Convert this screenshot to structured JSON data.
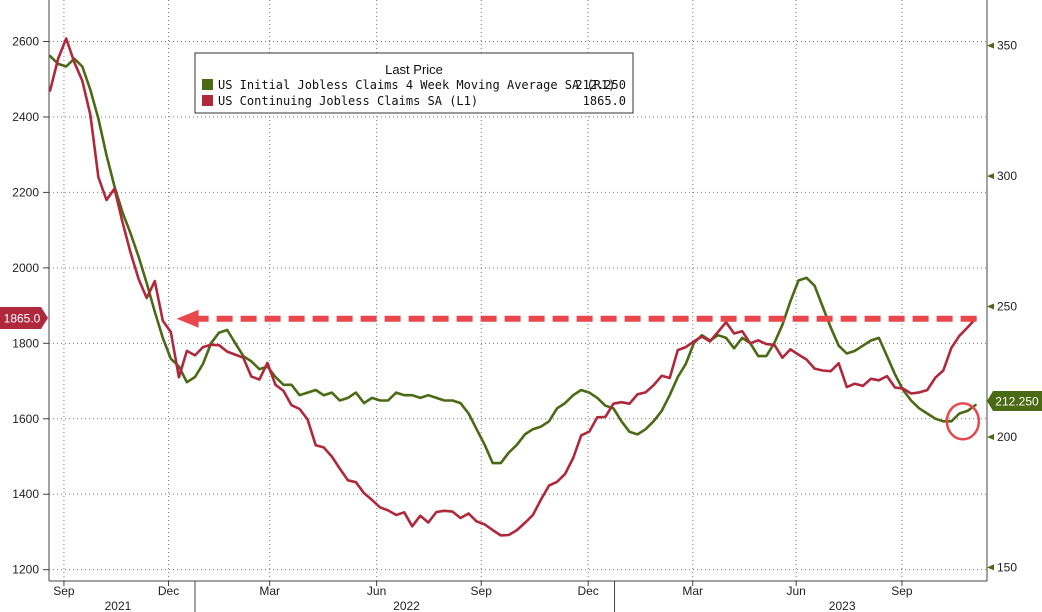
{
  "chart_data": {
    "type": "line",
    "title": "",
    "legend": {
      "title": "Last Price",
      "placement": "top-left",
      "entries": [
        {
          "series_index": 0,
          "label": "US Initial Jobless Claims 4 Week Moving Average SA  (R1)",
          "last_value": "212.250"
        },
        {
          "series_index": 1,
          "label": "US Continuing Jobless Claims SA  (L1)",
          "last_value": "1865.0"
        }
      ]
    },
    "left_axis": {
      "min": 1170,
      "max": 2710,
      "ticks": [
        1200,
        1400,
        1600,
        1800,
        2000,
        2200,
        2400,
        2600
      ]
    },
    "right_axis": {
      "min": 144.8,
      "max": 367.5,
      "ticks": [
        150,
        200,
        250,
        300,
        350
      ]
    },
    "x_axis": {
      "min": "2021-08-26",
      "max": "2023-11-20",
      "month_ticks": [
        {
          "label": "Sep",
          "date": "2021-09-08"
        },
        {
          "label": "Dec",
          "date": "2021-12-08"
        },
        {
          "label": "Mar",
          "date": "2022-03-06"
        },
        {
          "label": "Jun",
          "date": "2022-06-07"
        },
        {
          "label": "Sep",
          "date": "2022-09-06"
        },
        {
          "label": "Dec",
          "date": "2022-12-08"
        },
        {
          "label": "Mar",
          "date": "2023-03-09"
        },
        {
          "label": "Jun",
          "date": "2023-06-07"
        },
        {
          "label": "Sep",
          "date": "2023-09-07"
        }
      ],
      "year_labels": [
        {
          "label": "2021",
          "date": "2021-10-25"
        },
        {
          "label": "2022",
          "date": "2022-07-03"
        },
        {
          "label": "2023",
          "date": "2023-07-17"
        }
      ],
      "year_dividers": [
        "2021-12-31",
        "2022-12-31"
      ]
    },
    "grid": true,
    "reference_line": {
      "value": 1865,
      "axis": "left",
      "style": "dashed-arrow",
      "color": "#e8474c",
      "from": "2021-12-15",
      "to": "2023-11-15"
    },
    "highlight_circle": {
      "date": "2023-10-30",
      "value": 206,
      "axis": "right",
      "color": "#e8474c"
    },
    "series": [
      {
        "name": "US Initial Jobless Claims 4 Week Moving Average SA",
        "axis": "right",
        "color": "#4b6a14",
        "points": [
          [
            "2021-08-27",
            346
          ],
          [
            "2021-09-03",
            343
          ],
          [
            "2021-09-10",
            342
          ],
          [
            "2021-09-17",
            345
          ],
          [
            "2021-09-24",
            342
          ],
          [
            "2021-10-01",
            333
          ],
          [
            "2021-10-08",
            322
          ],
          [
            "2021-10-15",
            308
          ],
          [
            "2021-10-22",
            296
          ],
          [
            "2021-10-29",
            286
          ],
          [
            "2021-11-05",
            278
          ],
          [
            "2021-11-12",
            269
          ],
          [
            "2021-11-19",
            259
          ],
          [
            "2021-11-26",
            248
          ],
          [
            "2021-12-03",
            238
          ],
          [
            "2021-12-10",
            230
          ],
          [
            "2021-12-17",
            227
          ],
          [
            "2021-12-24",
            221
          ],
          [
            "2021-12-31",
            223
          ],
          [
            "2022-01-07",
            228
          ],
          [
            "2022-01-14",
            236
          ],
          [
            "2022-01-21",
            240
          ],
          [
            "2022-01-28",
            241
          ],
          [
            "2022-02-04",
            236
          ],
          [
            "2022-02-11",
            231
          ],
          [
            "2022-02-18",
            229
          ],
          [
            "2022-02-25",
            226
          ],
          [
            "2022-03-04",
            227
          ],
          [
            "2022-03-11",
            223
          ],
          [
            "2022-03-18",
            220
          ],
          [
            "2022-03-25",
            220
          ],
          [
            "2022-04-01",
            216
          ],
          [
            "2022-04-08",
            217
          ],
          [
            "2022-04-15",
            218
          ],
          [
            "2022-04-22",
            216
          ],
          [
            "2022-04-29",
            217
          ],
          [
            "2022-05-06",
            214
          ],
          [
            "2022-05-13",
            215
          ],
          [
            "2022-05-20",
            217
          ],
          [
            "2022-05-27",
            213
          ],
          [
            "2022-06-03",
            215
          ],
          [
            "2022-06-10",
            214
          ],
          [
            "2022-06-17",
            214
          ],
          [
            "2022-06-24",
            217
          ],
          [
            "2022-07-01",
            216
          ],
          [
            "2022-07-08",
            216
          ],
          [
            "2022-07-15",
            215
          ],
          [
            "2022-07-22",
            216
          ],
          [
            "2022-07-29",
            215
          ],
          [
            "2022-08-05",
            214
          ],
          [
            "2022-08-12",
            214
          ],
          [
            "2022-08-19",
            213
          ],
          [
            "2022-08-26",
            209
          ],
          [
            "2022-09-02",
            203
          ],
          [
            "2022-09-09",
            197
          ],
          [
            "2022-09-16",
            190
          ],
          [
            "2022-09-23",
            190
          ],
          [
            "2022-09-30",
            194
          ],
          [
            "2022-10-07",
            197
          ],
          [
            "2022-10-14",
            201
          ],
          [
            "2022-10-21",
            203
          ],
          [
            "2022-10-28",
            204
          ],
          [
            "2022-11-04",
            206
          ],
          [
            "2022-11-11",
            211
          ],
          [
            "2022-11-18",
            213
          ],
          [
            "2022-11-25",
            216
          ],
          [
            "2022-12-02",
            218
          ],
          [
            "2022-12-09",
            217
          ],
          [
            "2022-12-16",
            215
          ],
          [
            "2022-12-23",
            212
          ],
          [
            "2022-12-30",
            211
          ],
          [
            "2023-01-06",
            206
          ],
          [
            "2023-01-13",
            202
          ],
          [
            "2023-01-20",
            201
          ],
          [
            "2023-01-27",
            203
          ],
          [
            "2023-02-03",
            206
          ],
          [
            "2023-02-10",
            210
          ],
          [
            "2023-02-17",
            216
          ],
          [
            "2023-02-24",
            223
          ],
          [
            "2023-03-03",
            228
          ],
          [
            "2023-03-10",
            236
          ],
          [
            "2023-03-17",
            239
          ],
          [
            "2023-03-24",
            237
          ],
          [
            "2023-03-31",
            239
          ],
          [
            "2023-04-07",
            238
          ],
          [
            "2023-04-14",
            234
          ],
          [
            "2023-04-21",
            238
          ],
          [
            "2023-04-28",
            236
          ],
          [
            "2023-05-05",
            231
          ],
          [
            "2023-05-12",
            231
          ],
          [
            "2023-05-19",
            236
          ],
          [
            "2023-05-26",
            243
          ],
          [
            "2023-06-02",
            252
          ],
          [
            "2023-06-09",
            260
          ],
          [
            "2023-06-16",
            261
          ],
          [
            "2023-06-23",
            258
          ],
          [
            "2023-06-30",
            250
          ],
          [
            "2023-07-07",
            242
          ],
          [
            "2023-07-14",
            235
          ],
          [
            "2023-07-21",
            232
          ],
          [
            "2023-07-28",
            233
          ],
          [
            "2023-08-04",
            235
          ],
          [
            "2023-08-11",
            237
          ],
          [
            "2023-08-18",
            238
          ],
          [
            "2023-08-25",
            231
          ],
          [
            "2023-09-01",
            224
          ],
          [
            "2023-09-08",
            218
          ],
          [
            "2023-09-15",
            214
          ],
          [
            "2023-09-22",
            211
          ],
          [
            "2023-09-29",
            209
          ],
          [
            "2023-10-06",
            207
          ],
          [
            "2023-10-13",
            206
          ],
          [
            "2023-10-20",
            206
          ],
          [
            "2023-10-27",
            209
          ],
          [
            "2023-11-03",
            210
          ],
          [
            "2023-11-10",
            212.25
          ]
        ]
      },
      {
        "name": "US Continuing Jobless Claims SA",
        "axis": "left",
        "color": "#b0283c",
        "points": [
          [
            "2021-08-27",
            2470
          ],
          [
            "2021-09-03",
            2555
          ],
          [
            "2021-09-10",
            2608
          ],
          [
            "2021-09-17",
            2545
          ],
          [
            "2021-09-24",
            2496
          ],
          [
            "2021-10-01",
            2405
          ],
          [
            "2021-10-08",
            2240
          ],
          [
            "2021-10-15",
            2180
          ],
          [
            "2021-10-22",
            2210
          ],
          [
            "2021-10-29",
            2120
          ],
          [
            "2021-11-05",
            2040
          ],
          [
            "2021-11-12",
            1970
          ],
          [
            "2021-11-19",
            1920
          ],
          [
            "2021-11-26",
            1965
          ],
          [
            "2021-12-03",
            1860
          ],
          [
            "2021-12-10",
            1830
          ],
          [
            "2021-12-17",
            1710
          ],
          [
            "2021-12-24",
            1780
          ],
          [
            "2021-12-31",
            1768
          ],
          [
            "2022-01-07",
            1790
          ],
          [
            "2022-01-14",
            1796
          ],
          [
            "2022-01-21",
            1795
          ],
          [
            "2022-01-28",
            1778
          ],
          [
            "2022-02-04",
            1770
          ],
          [
            "2022-02-11",
            1762
          ],
          [
            "2022-02-18",
            1712
          ],
          [
            "2022-02-25",
            1704
          ],
          [
            "2022-03-04",
            1748
          ],
          [
            "2022-03-11",
            1690
          ],
          [
            "2022-03-18",
            1674
          ],
          [
            "2022-03-25",
            1636
          ],
          [
            "2022-04-01",
            1626
          ],
          [
            "2022-04-08",
            1598
          ],
          [
            "2022-04-15",
            1530
          ],
          [
            "2022-04-22",
            1524
          ],
          [
            "2022-04-29",
            1500
          ],
          [
            "2022-05-06",
            1468
          ],
          [
            "2022-05-13",
            1437
          ],
          [
            "2022-05-20",
            1432
          ],
          [
            "2022-05-27",
            1403
          ],
          [
            "2022-06-03",
            1385
          ],
          [
            "2022-06-10",
            1365
          ],
          [
            "2022-06-17",
            1357
          ],
          [
            "2022-06-24",
            1345
          ],
          [
            "2022-07-01",
            1352
          ],
          [
            "2022-07-08",
            1315
          ],
          [
            "2022-07-15",
            1343
          ],
          [
            "2022-07-22",
            1325
          ],
          [
            "2022-07-29",
            1353
          ],
          [
            "2022-08-05",
            1356
          ],
          [
            "2022-08-12",
            1354
          ],
          [
            "2022-08-19",
            1337
          ],
          [
            "2022-08-26",
            1349
          ],
          [
            "2022-09-02",
            1328
          ],
          [
            "2022-09-09",
            1320
          ],
          [
            "2022-09-16",
            1305
          ],
          [
            "2022-09-23",
            1291
          ],
          [
            "2022-09-30",
            1292
          ],
          [
            "2022-10-07",
            1305
          ],
          [
            "2022-10-14",
            1324
          ],
          [
            "2022-10-21",
            1345
          ],
          [
            "2022-10-28",
            1386
          ],
          [
            "2022-11-04",
            1423
          ],
          [
            "2022-11-11",
            1433
          ],
          [
            "2022-11-18",
            1454
          ],
          [
            "2022-11-25",
            1496
          ],
          [
            "2022-12-02",
            1556
          ],
          [
            "2022-12-09",
            1566
          ],
          [
            "2022-12-16",
            1604
          ],
          [
            "2022-12-23",
            1605
          ],
          [
            "2022-12-30",
            1640
          ],
          [
            "2023-01-06",
            1644
          ],
          [
            "2023-01-13",
            1640
          ],
          [
            "2023-01-20",
            1665
          ],
          [
            "2023-01-27",
            1670
          ],
          [
            "2023-02-03",
            1689
          ],
          [
            "2023-02-10",
            1714
          ],
          [
            "2023-02-17",
            1708
          ],
          [
            "2023-02-24",
            1782
          ],
          [
            "2023-03-03",
            1790
          ],
          [
            "2023-03-10",
            1805
          ],
          [
            "2023-03-17",
            1818
          ],
          [
            "2023-03-24",
            1805
          ],
          [
            "2023-03-31",
            1830
          ],
          [
            "2023-04-07",
            1856
          ],
          [
            "2023-04-14",
            1826
          ],
          [
            "2023-04-21",
            1832
          ],
          [
            "2023-04-28",
            1800
          ],
          [
            "2023-05-05",
            1808
          ],
          [
            "2023-05-12",
            1798
          ],
          [
            "2023-05-19",
            1796
          ],
          [
            "2023-05-26",
            1762
          ],
          [
            "2023-06-02",
            1784
          ],
          [
            "2023-06-09",
            1770
          ],
          [
            "2023-06-16",
            1757
          ],
          [
            "2023-06-23",
            1733
          ],
          [
            "2023-06-30",
            1728
          ],
          [
            "2023-07-07",
            1726
          ],
          [
            "2023-07-14",
            1747
          ],
          [
            "2023-07-21",
            1684
          ],
          [
            "2023-07-28",
            1693
          ],
          [
            "2023-08-04",
            1687
          ],
          [
            "2023-08-11",
            1706
          ],
          [
            "2023-08-18",
            1702
          ],
          [
            "2023-08-25",
            1713
          ],
          [
            "2023-09-01",
            1683
          ],
          [
            "2023-09-08",
            1680
          ],
          [
            "2023-09-15",
            1667
          ],
          [
            "2023-09-22",
            1670
          ],
          [
            "2023-09-29",
            1676
          ],
          [
            "2023-10-06",
            1709
          ],
          [
            "2023-10-13",
            1728
          ],
          [
            "2023-10-20",
            1788
          ],
          [
            "2023-10-27",
            1820
          ],
          [
            "2023-11-03",
            1842
          ],
          [
            "2023-11-10",
            1865
          ]
        ]
      }
    ]
  }
}
